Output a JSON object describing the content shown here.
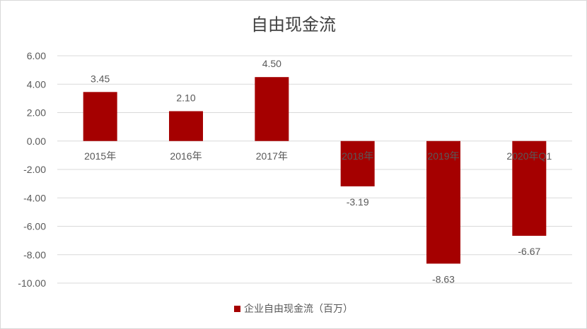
{
  "colors": {
    "bar": "#a50000",
    "grid": "#d9d9d9",
    "text": "#595959",
    "title": "#404040"
  },
  "chart_data": {
    "type": "bar",
    "title": "自由现金流",
    "categories": [
      "2015年",
      "2016年",
      "2017年",
      "2018年",
      "2019年",
      "2020年Q1"
    ],
    "series": [
      {
        "name": "企业自由现金流（百万）",
        "values": [
          3.45,
          2.1,
          4.5,
          -3.19,
          -8.63,
          -6.67
        ]
      }
    ],
    "data_labels": [
      "3.45",
      "2.10",
      "4.50",
      "-3.19",
      "-8.63",
      "-6.67"
    ],
    "y_ticks": [
      "6.00",
      "4.00",
      "2.00",
      "0.00",
      "-2.00",
      "-4.00",
      "-6.00",
      "-8.00",
      "-10.00"
    ],
    "ylim": [
      -10,
      6
    ],
    "grid": true,
    "legend_position": "bottom"
  }
}
